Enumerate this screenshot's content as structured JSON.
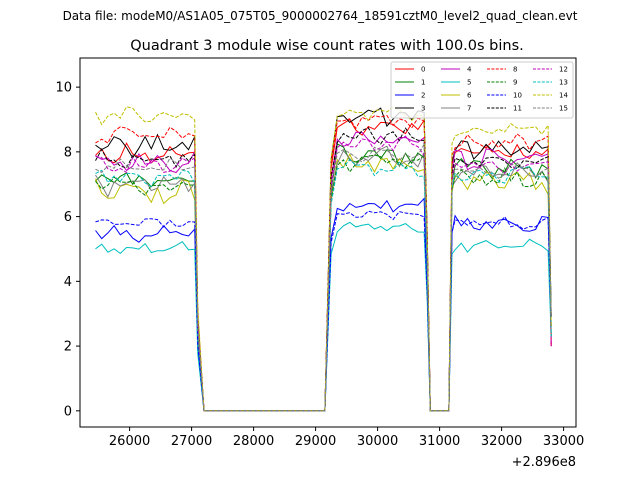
{
  "chart_data": {
    "type": "line",
    "suptitle": "Data file: modeM0/AS1A05_075T05_9000002764_18591cztM0_level2_quad_clean.evt",
    "title": "Quadrant 3 module wise count rates with 100.0s bins.",
    "xlabel": "",
    "ylabel": "",
    "x_offset_label": "+2.896e8",
    "xlim": [
      25200,
      33200
    ],
    "ylim": [
      -0.5,
      10.9
    ],
    "xticks": [
      26000,
      27000,
      28000,
      29000,
      30000,
      31000,
      32000,
      33000
    ],
    "yticks": [
      0,
      2,
      4,
      6,
      8,
      10
    ],
    "xtick_labels": [
      "26000",
      "27000",
      "28000",
      "29000",
      "30000",
      "31000",
      "32000",
      "33000"
    ],
    "ytick_labels": [
      "0",
      "2",
      "4",
      "6",
      "8",
      "10"
    ],
    "legend_position": "top-right",
    "segments": [
      {
        "start": 25450,
        "end": 27050
      },
      {
        "start": 29350,
        "end": 30750
      },
      {
        "start": 31250,
        "end": 32750
      }
    ],
    "gaps": [
      [
        27100,
        29250
      ],
      [
        30850,
        31150
      ]
    ],
    "bin_width": 100,
    "series": [
      {
        "name": "0",
        "color": "#ff0000",
        "dash": "solid",
        "level": [
          8.0,
          8.8,
          8.0
        ],
        "amp": 0.25
      },
      {
        "name": "1",
        "color": "#008000",
        "dash": "solid",
        "level": [
          7.2,
          7.9,
          7.5
        ],
        "amp": 0.25
      },
      {
        "name": "2",
        "color": "#0000ff",
        "dash": "solid",
        "level": [
          5.5,
          6.3,
          5.8
        ],
        "amp": 0.2
      },
      {
        "name": "3",
        "color": "#000000",
        "dash": "solid",
        "level": [
          8.2,
          9.1,
          8.1
        ],
        "amp": 0.25
      },
      {
        "name": "4",
        "color": "#bf00bf",
        "dash": "solid",
        "level": [
          7.7,
          8.4,
          7.8
        ],
        "amp": 0.25
      },
      {
        "name": "5",
        "color": "#00bfbf",
        "dash": "solid",
        "level": [
          5.0,
          5.7,
          5.1
        ],
        "amp": 0.15
      },
      {
        "name": "6",
        "color": "#bfbf00",
        "dash": "solid",
        "level": [
          6.8,
          7.6,
          7.1
        ],
        "amp": 0.3
      },
      {
        "name": "7",
        "color": "#808080",
        "dash": "solid",
        "level": [
          7.0,
          7.8,
          7.3
        ],
        "amp": 0.25
      },
      {
        "name": "8",
        "color": "#ff0000",
        "dash": "dashed",
        "level": [
          8.5,
          9.0,
          8.3
        ],
        "amp": 0.2
      },
      {
        "name": "9",
        "color": "#008000",
        "dash": "dashed",
        "level": [
          7.0,
          7.7,
          7.2
        ],
        "amp": 0.25
      },
      {
        "name": "10",
        "color": "#0000ff",
        "dash": "dashed",
        "level": [
          5.8,
          6.1,
          5.8
        ],
        "amp": 0.15
      },
      {
        "name": "11",
        "color": "#000000",
        "dash": "dashed",
        "level": [
          7.8,
          8.5,
          7.7
        ],
        "amp": 0.2
      },
      {
        "name": "12",
        "color": "#bf00bf",
        "dash": "dashed",
        "level": [
          7.6,
          8.2,
          7.6
        ],
        "amp": 0.2
      },
      {
        "name": "13",
        "color": "#00bfbf",
        "dash": "dashed",
        "level": [
          7.2,
          7.5,
          7.3
        ],
        "amp": 0.2
      },
      {
        "name": "14",
        "color": "#bfbf00",
        "dash": "dashed",
        "level": [
          9.1,
          9.2,
          8.7
        ],
        "amp": 0.2
      },
      {
        "name": "15",
        "color": "#808080",
        "dash": "dashed",
        "level": [
          7.5,
          8.0,
          7.4
        ],
        "amp": 0.2
      }
    ]
  }
}
